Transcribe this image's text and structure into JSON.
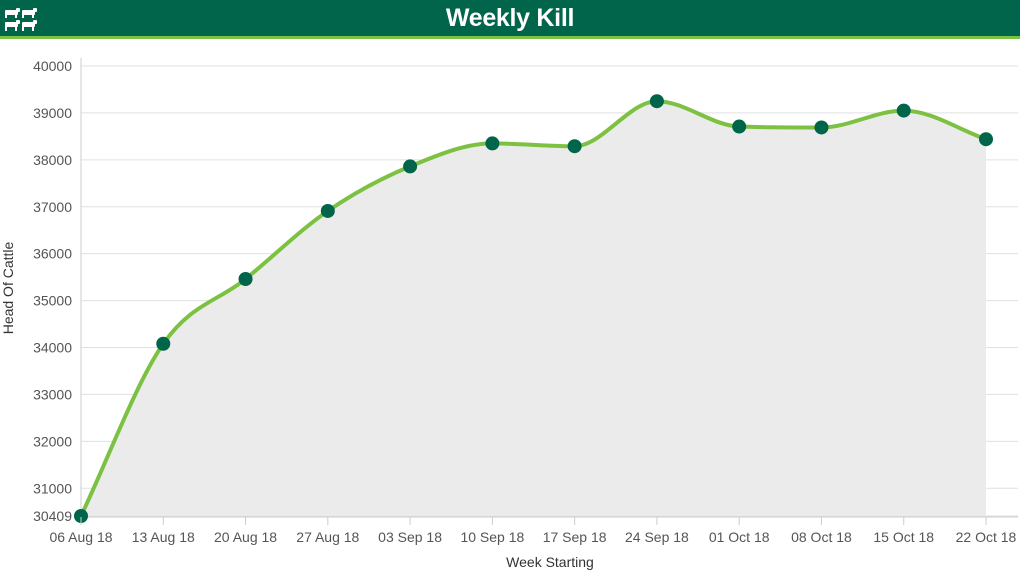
{
  "header": {
    "title": "Weekly Kill",
    "logo_icon": "cattle-herd-icon"
  },
  "colors": {
    "header_bg": "#00654a",
    "header_accent": "#7cc142",
    "line": "#7cc142",
    "marker": "#00654a",
    "area": "#ebebeb",
    "grid": "#e0e0e0"
  },
  "chart_data": {
    "type": "area",
    "title": "Weekly Kill",
    "xlabel": "Week Starting",
    "ylabel": "Head Of Cattle",
    "categories": [
      "06 Aug 18",
      "13 Aug 18",
      "20 Aug 18",
      "27 Aug 18",
      "03 Sep 18",
      "10 Sep 18",
      "17 Sep 18",
      "24 Sep 18",
      "01 Oct 18",
      "08 Oct 18",
      "15 Oct 18",
      "22 Oct 18"
    ],
    "series": [
      {
        "values": [
          30409,
          34080,
          35460,
          36910,
          37860,
          38350,
          38290,
          39250,
          38710,
          38690,
          39050,
          38440
        ]
      }
    ],
    "ylim": [
      30409,
      40000
    ],
    "yticks": [
      30409,
      31000,
      32000,
      33000,
      34000,
      35000,
      36000,
      37000,
      38000,
      39000,
      40000
    ],
    "grid": true,
    "legend": "none",
    "smooth": true
  }
}
